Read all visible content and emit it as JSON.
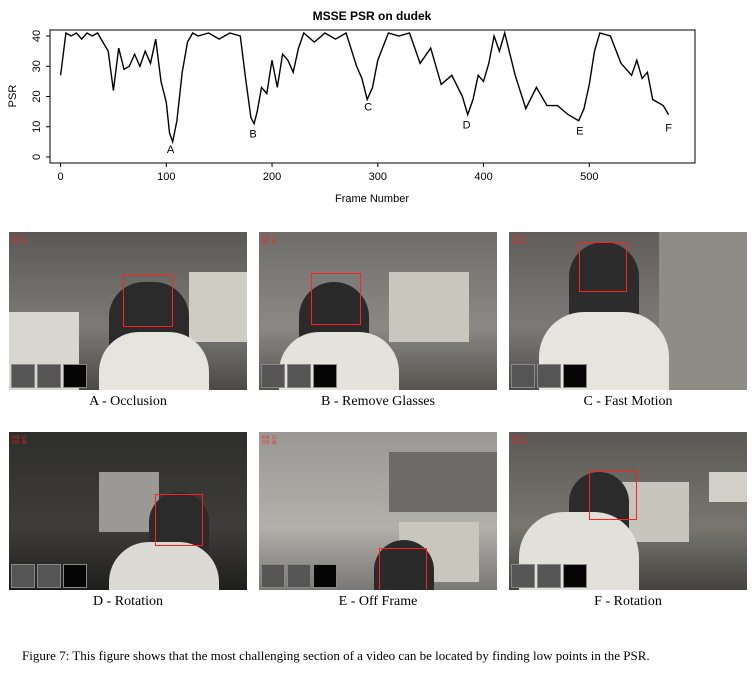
{
  "chart_data": {
    "type": "line",
    "title": "MSSE PSR on dudek",
    "xlabel": "Frame Number",
    "ylabel": "PSR",
    "xlim": [
      -10,
      600
    ],
    "ylim": [
      -2,
      42
    ],
    "xticks": [
      0,
      100,
      200,
      300,
      400,
      500
    ],
    "yticks": [
      0,
      10,
      20,
      30,
      40
    ],
    "grid": false,
    "x": [
      0,
      5,
      10,
      15,
      20,
      25,
      30,
      35,
      40,
      45,
      50,
      55,
      60,
      65,
      70,
      75,
      80,
      85,
      90,
      95,
      100,
      103,
      106,
      110,
      115,
      120,
      125,
      130,
      140,
      150,
      160,
      170,
      175,
      180,
      183,
      186,
      190,
      195,
      200,
      205,
      210,
      215,
      220,
      225,
      230,
      240,
      250,
      260,
      270,
      280,
      285,
      290,
      295,
      300,
      310,
      320,
      330,
      340,
      350,
      360,
      370,
      380,
      385,
      390,
      395,
      400,
      405,
      410,
      415,
      420,
      430,
      440,
      450,
      460,
      470,
      480,
      490,
      495,
      500,
      505,
      510,
      520,
      530,
      540,
      545,
      550,
      555,
      560,
      565,
      570,
      575
    ],
    "y": [
      27,
      41,
      40,
      41,
      39,
      41,
      40,
      41,
      38,
      35,
      22,
      36,
      29,
      30,
      34,
      30,
      35,
      31,
      39,
      25,
      18,
      8,
      5,
      12,
      28,
      38,
      41,
      40,
      41,
      39,
      41,
      40,
      26,
      13,
      11,
      15,
      23,
      21,
      32,
      23,
      34,
      32,
      28,
      36,
      41,
      38,
      41,
      39,
      41,
      30,
      26,
      19,
      23,
      32,
      41,
      40,
      41,
      31,
      36,
      24,
      27,
      20,
      14,
      19,
      27,
      25,
      31,
      40,
      35,
      41,
      27,
      16,
      23,
      17,
      17,
      14,
      12,
      16,
      24,
      35,
      41,
      40,
      31,
      27,
      32,
      26,
      28,
      19,
      18,
      17,
      14
    ],
    "annotations": [
      {
        "text": "A",
        "x": 104,
        "y": 5
      },
      {
        "text": "B",
        "x": 182,
        "y": 10
      },
      {
        "text": "C",
        "x": 291,
        "y": 19
      },
      {
        "text": "D",
        "x": 384,
        "y": 13
      },
      {
        "text": "E",
        "x": 491,
        "y": 11
      },
      {
        "text": "F",
        "x": 575,
        "y": 12
      }
    ]
  },
  "panels": [
    {
      "label": "A - Occlusion",
      "bg": "#5e5d5a"
    },
    {
      "label": "B - Remove Glasses",
      "bg": "#6a6965"
    },
    {
      "label": "C - Fast Motion",
      "bg": "#6b6a66"
    },
    {
      "label": "D - Rotation",
      "bg": "#2a2a28"
    },
    {
      "label": "E - Off Frame",
      "bg": "#8a8884"
    },
    {
      "label": "F - Rotation",
      "bg": "#5c5b57"
    }
  ],
  "hud_text": [
    "PSR 12",
    "FPS 30"
  ],
  "figure_caption": "Figure 7: This figure shows that the most challenging section of a video can be located by finding low points in the PSR.",
  "colors": {
    "accent": "#ff2020"
  }
}
